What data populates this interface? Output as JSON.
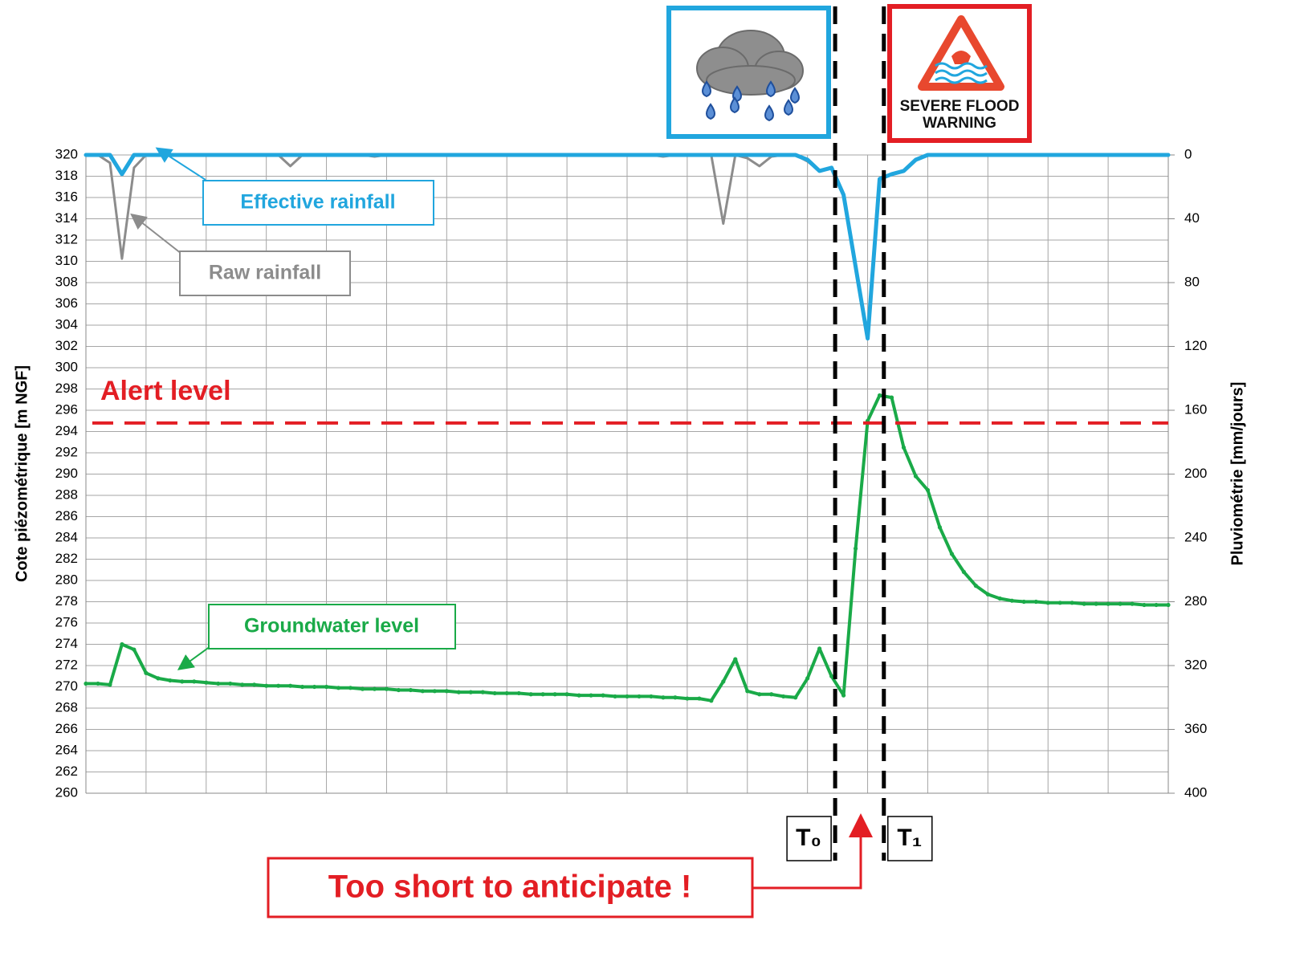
{
  "chart_data": {
    "type": "line",
    "y_label": "Cote piézométrique [m NGF]",
    "y2_label": "Pluviométrie [mm/jours]",
    "x": [
      0,
      2,
      4,
      6,
      8,
      10,
      12,
      14,
      16,
      18,
      20,
      22,
      24,
      26,
      28,
      30,
      32,
      34,
      36,
      38,
      40,
      42,
      44,
      46,
      48,
      50,
      52,
      54,
      56,
      58,
      60,
      62,
      64,
      66,
      68,
      70,
      72,
      74,
      76,
      78,
      80,
      82,
      84,
      86,
      88,
      90,
      92,
      94,
      96,
      98,
      100,
      102,
      104,
      106,
      108,
      110,
      112,
      114,
      116,
      118,
      120,
      122,
      124,
      126,
      128,
      130,
      132,
      134,
      136,
      138,
      140,
      142,
      144,
      146,
      148,
      150,
      152,
      154,
      156,
      158,
      160,
      162,
      164,
      166,
      168,
      170,
      172,
      174,
      176,
      178,
      180
    ],
    "xlim": [
      0,
      180
    ],
    "xticks": [
      0,
      10,
      20,
      30,
      40,
      50,
      60,
      70,
      80,
      90,
      100,
      110,
      120,
      130,
      140,
      150,
      160,
      170,
      180
    ],
    "ylim": [
      260,
      320
    ],
    "yticks": [
      260,
      262,
      264,
      266,
      268,
      270,
      272,
      274,
      276,
      278,
      280,
      282,
      284,
      286,
      288,
      290,
      292,
      294,
      296,
      298,
      300,
      302,
      304,
      306,
      308,
      310,
      312,
      314,
      316,
      318,
      320
    ],
    "y2lim": [
      400,
      0
    ],
    "y2ticks": [
      0,
      40,
      80,
      120,
      160,
      200,
      240,
      280,
      320,
      360,
      400
    ],
    "grid": true,
    "series": [
      {
        "name": "Raw rainfall",
        "color": "#8c8c8c",
        "axis": "y2",
        "values": [
          0,
          0,
          5,
          65,
          8,
          0,
          0,
          0,
          0,
          0,
          0,
          0,
          0,
          0,
          0,
          0,
          0,
          7,
          0,
          0,
          0,
          0,
          0,
          0,
          1,
          0,
          0,
          0,
          0,
          0,
          0,
          0,
          0,
          0,
          0,
          0,
          0,
          0,
          0,
          0,
          0,
          0,
          0,
          0,
          0,
          0,
          0,
          0,
          1,
          0,
          0,
          0,
          0,
          43,
          0,
          2,
          7,
          1,
          0,
          0,
          4,
          10,
          8,
          25,
          70,
          115,
          15,
          12,
          10,
          3,
          0,
          0,
          0,
          0,
          0,
          0,
          0,
          0,
          0,
          0,
          0,
          0,
          0,
          0,
          0,
          0,
          0,
          0,
          0,
          0,
          0
        ]
      },
      {
        "name": "Effective rainfall",
        "color": "#21a6de",
        "axis": "y2",
        "values": [
          0,
          0,
          0,
          12,
          0,
          0,
          0,
          0,
          0,
          0,
          0,
          0,
          0,
          0,
          0,
          0,
          0,
          0,
          0,
          0,
          0,
          0,
          0,
          0,
          0,
          0,
          0,
          0,
          0,
          0,
          0,
          0,
          0,
          0,
          0,
          0,
          0,
          0,
          0,
          0,
          0,
          0,
          0,
          0,
          0,
          0,
          0,
          0,
          0,
          0,
          0,
          0,
          0,
          0,
          0,
          0,
          0,
          0,
          0,
          0,
          3,
          10,
          8,
          25,
          70,
          115,
          15,
          12,
          10,
          3,
          0,
          0,
          0,
          0,
          0,
          0,
          0,
          0,
          0,
          0,
          0,
          0,
          0,
          0,
          0,
          0,
          0,
          0,
          0,
          0,
          0
        ]
      },
      {
        "name": "Groundwater level",
        "color": "#1aaa48",
        "axis": "y",
        "values": [
          270.3,
          270.3,
          270.2,
          274.0,
          273.5,
          271.3,
          270.8,
          270.6,
          270.5,
          270.5,
          270.4,
          270.3,
          270.3,
          270.2,
          270.2,
          270.1,
          270.1,
          270.1,
          270.0,
          270.0,
          270.0,
          269.9,
          269.9,
          269.8,
          269.8,
          269.8,
          269.7,
          269.7,
          269.6,
          269.6,
          269.6,
          269.5,
          269.5,
          269.5,
          269.4,
          269.4,
          269.4,
          269.3,
          269.3,
          269.3,
          269.3,
          269.2,
          269.2,
          269.2,
          269.1,
          269.1,
          269.1,
          269.1,
          269.0,
          269.0,
          268.9,
          268.9,
          268.7,
          270.5,
          272.6,
          269.6,
          269.3,
          269.3,
          269.1,
          269.0,
          270.8,
          273.6,
          271.0,
          269.2,
          283.0,
          295.0,
          297.4,
          297.2,
          292.5,
          289.8,
          288.5,
          285.0,
          282.5,
          280.8,
          279.5,
          278.7,
          278.3,
          278.1,
          278.0,
          278.0,
          277.9,
          277.9,
          277.9,
          277.8,
          277.8,
          277.8,
          277.8,
          277.8,
          277.7,
          277.7,
          277.7
        ]
      }
    ],
    "alert_level": {
      "label": "Alert level",
      "value": 294.8,
      "color": "#e31e24"
    },
    "markers": [
      {
        "label": "T₀",
        "x": 124.6
      },
      {
        "label": "T₁",
        "x": 132.7
      }
    ],
    "callout": "Too short to anticipate !",
    "warning_sign": "SEVERE FLOOD WARNING"
  }
}
